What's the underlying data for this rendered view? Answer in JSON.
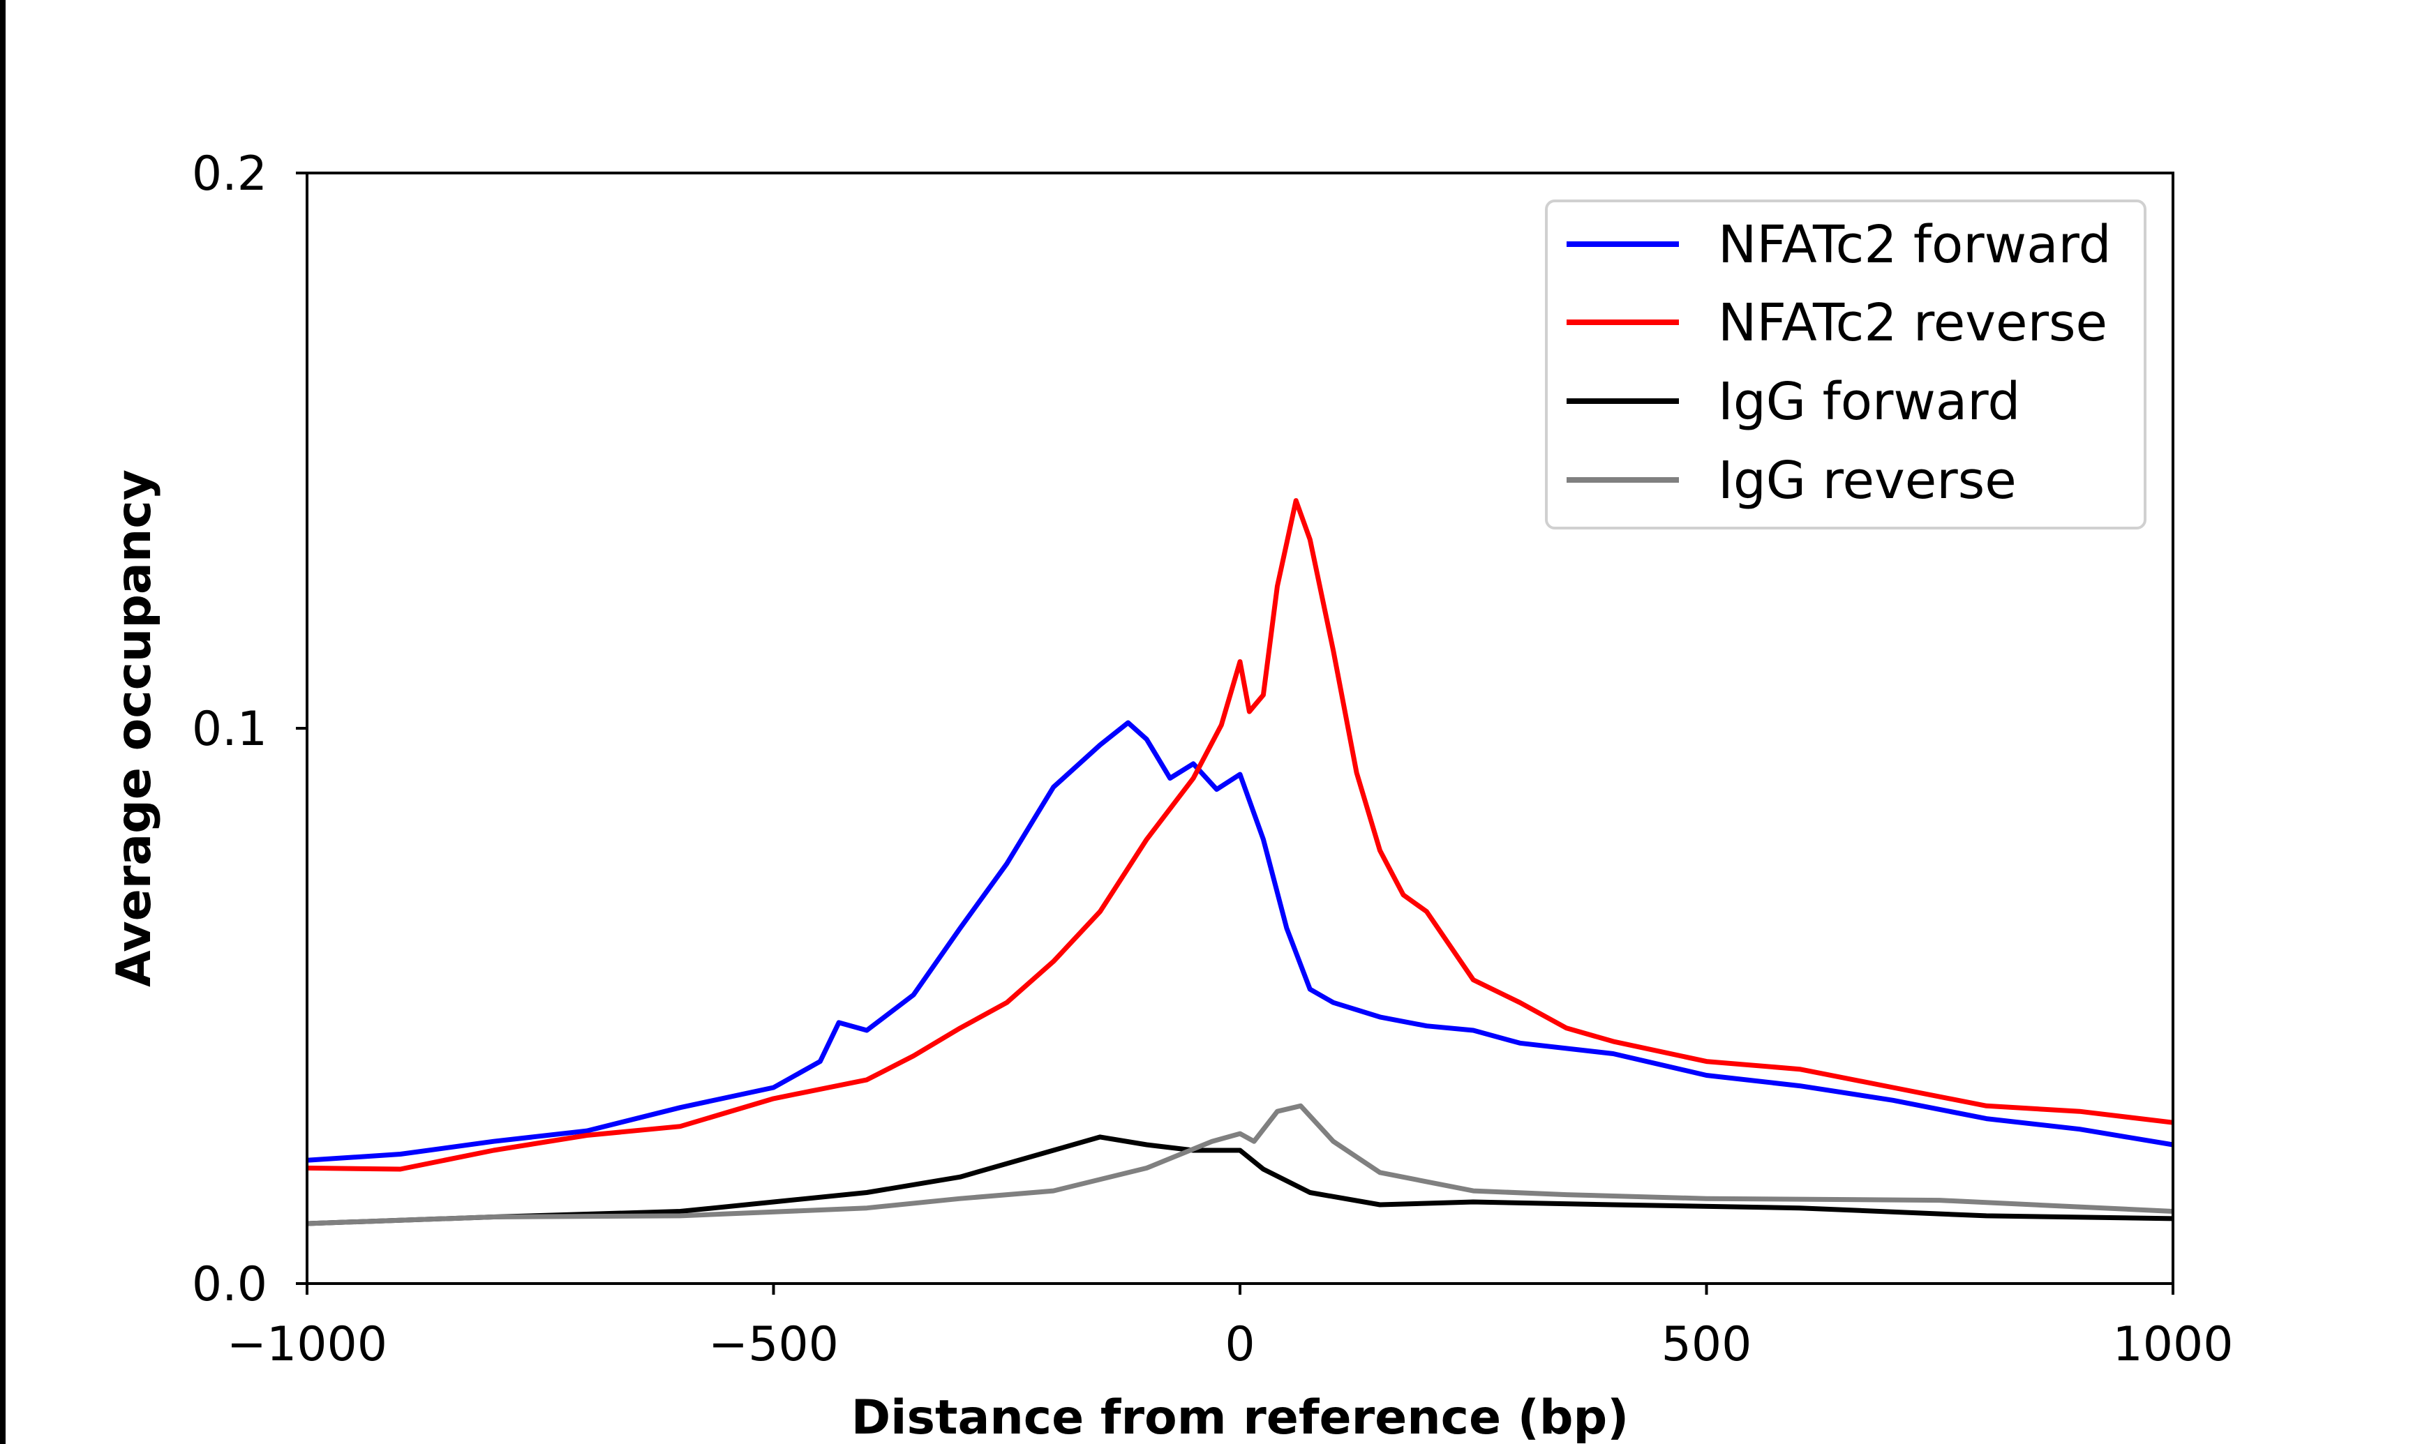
{
  "chart_data": {
    "type": "line",
    "title": "",
    "xlabel": "Distance from reference (bp)",
    "ylabel": "Average occupancy",
    "xlim": [
      -1000,
      1000
    ],
    "ylim": [
      0.0,
      0.2
    ],
    "xticks": [
      -1000,
      -500,
      0,
      500,
      1000
    ],
    "xtick_labels": [
      "−1000",
      "−500",
      "0",
      "500",
      "1000"
    ],
    "yticks": [
      0.0,
      0.1,
      0.2
    ],
    "ytick_labels": [
      "0.0",
      "0.1",
      "0.2"
    ],
    "grid": false,
    "legend_position": "top-right",
    "series": [
      {
        "name": "NFATc2 forward",
        "color": "#0000ff",
        "x": [
          -1000,
          -900,
          -800,
          -700,
          -600,
          -500,
          -450,
          -430,
          -400,
          -350,
          -300,
          -250,
          -200,
          -150,
          -120,
          -100,
          -75,
          -50,
          -25,
          0,
          25,
          50,
          75,
          100,
          150,
          200,
          250,
          300,
          400,
          500,
          600,
          700,
          800,
          900,
          1000
        ],
        "y": [
          0.0222,
          0.0233,
          0.0256,
          0.0275,
          0.0317,
          0.0353,
          0.04,
          0.047,
          0.0456,
          0.052,
          0.064,
          0.0756,
          0.0894,
          0.097,
          0.101,
          0.098,
          0.091,
          0.0936,
          0.089,
          0.0917,
          0.08,
          0.064,
          0.053,
          0.0506,
          0.048,
          0.0464,
          0.0456,
          0.0433,
          0.0414,
          0.0375,
          0.0356,
          0.033,
          0.0297,
          0.0278,
          0.025
        ]
      },
      {
        "name": "NFATc2 reverse",
        "color": "#ff0000",
        "x": [
          -1000,
          -900,
          -800,
          -700,
          -600,
          -500,
          -400,
          -350,
          -300,
          -250,
          -200,
          -150,
          -100,
          -50,
          -20,
          0,
          10,
          25,
          40,
          60,
          75,
          100,
          125,
          150,
          175,
          200,
          250,
          300,
          350,
          400,
          500,
          600,
          700,
          800,
          900,
          1000
        ],
        "y": [
          0.0208,
          0.0206,
          0.024,
          0.0267,
          0.0283,
          0.0333,
          0.0367,
          0.041,
          0.046,
          0.0506,
          0.058,
          0.067,
          0.08,
          0.091,
          0.1006,
          0.112,
          0.103,
          0.106,
          0.1256,
          0.141,
          0.134,
          0.114,
          0.092,
          0.078,
          0.07,
          0.067,
          0.0547,
          0.0506,
          0.046,
          0.0436,
          0.04,
          0.0386,
          0.0353,
          0.032,
          0.031,
          0.029
        ]
      },
      {
        "name": "IgG forward",
        "color": "#000000",
        "x": [
          -1000,
          -800,
          -600,
          -500,
          -400,
          -300,
          -200,
          -150,
          -100,
          -50,
          0,
          25,
          75,
          150,
          250,
          400,
          600,
          800,
          1000
        ],
        "y": [
          0.0108,
          0.012,
          0.013,
          0.0147,
          0.0164,
          0.0192,
          0.024,
          0.0264,
          0.025,
          0.024,
          0.024,
          0.0206,
          0.0164,
          0.0142,
          0.0147,
          0.0142,
          0.0136,
          0.0122,
          0.0117
        ]
      },
      {
        "name": "IgG reverse",
        "color": "#808080",
        "x": [
          -1000,
          -800,
          -600,
          -400,
          -300,
          -200,
          -100,
          -30,
          0,
          15,
          40,
          65,
          100,
          150,
          250,
          350,
          500,
          750,
          1000
        ],
        "y": [
          0.0108,
          0.012,
          0.0122,
          0.0136,
          0.0153,
          0.0167,
          0.0208,
          0.0256,
          0.027,
          0.0256,
          0.031,
          0.032,
          0.0256,
          0.02,
          0.0167,
          0.016,
          0.0153,
          0.015,
          0.013
        ]
      }
    ]
  }
}
